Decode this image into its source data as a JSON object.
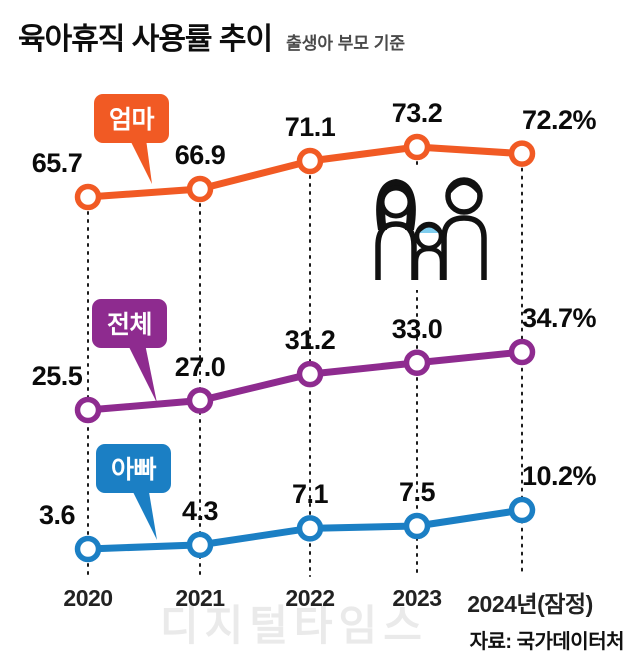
{
  "header": {
    "title": "육아휴직 사용률 추이",
    "subtitle": "출생아 부모 기준"
  },
  "chart_data": {
    "type": "line",
    "title": "육아휴직 사용률 추이",
    "subtitle": "출생아 부모 기준",
    "categories": [
      "2020",
      "2021",
      "2022",
      "2023",
      "2024년(잠정)"
    ],
    "series": [
      {
        "key": "mom",
        "name": "엄마",
        "color": "#f15a24",
        "values": [
          65.7,
          66.9,
          71.1,
          73.2,
          72.2
        ]
      },
      {
        "key": "total",
        "name": "전체",
        "color": "#8e2b8f",
        "values": [
          25.5,
          27.0,
          31.2,
          33.0,
          34.7
        ]
      },
      {
        "key": "dad",
        "name": "아빠",
        "color": "#1b7fc4",
        "values": [
          3.6,
          4.3,
          7.1,
          7.5,
          10.2
        ]
      }
    ],
    "value_format": "0.0",
    "last_value_suffix": "%",
    "legend_position": "on-chart speech-bubble badges",
    "grid": "dotted vertical guides per category",
    "marker": "white circle with colored ring"
  },
  "icons": {
    "family_icon": "family-parents-and-child",
    "child_hair_color": "#7fcdee"
  },
  "source": "자료: 국가데이터처",
  "watermark": "디지털타임스",
  "colors": {
    "mom": "#f15a24",
    "total": "#8e2b8f",
    "dad": "#1b7fc4",
    "text": "#0b0b0b",
    "guide": "#1a1a1a"
  }
}
